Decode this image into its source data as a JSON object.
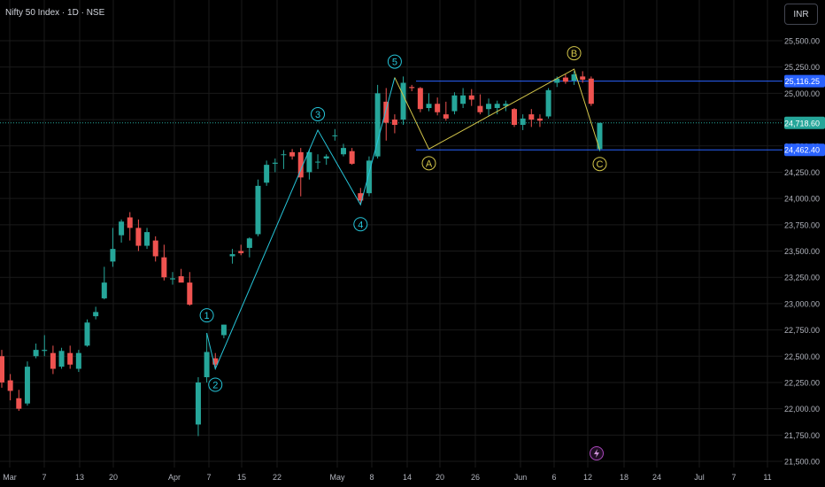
{
  "header": {
    "title": "Nifty 50 Index · 1D · NSE",
    "currency": "INR"
  },
  "colors": {
    "up": "#26a69a",
    "down": "#ef5350",
    "wave_line": "#26c6da",
    "abc_line": "#d4c64a",
    "level_line": "#2962ff",
    "current_line": "#26a69a",
    "grid": "#1a1a1a",
    "axis_text": "#b2b5be"
  },
  "chart_data": {
    "type": "candlestick",
    "title": "Nifty 50 Index · 1D · NSE",
    "y_ticks": [
      21500,
      21750,
      22000,
      22250,
      22500,
      22750,
      23000,
      23250,
      23500,
      23750,
      24000,
      24250,
      24500,
      24750,
      25000,
      25250,
      25500
    ],
    "y_tick_labels": [
      "21,500.00",
      "21,750.00",
      "22,000.00",
      "22,250.00",
      "22,500.00",
      "22,750.00",
      "23,000.00",
      "23,250.00",
      "23,500.00",
      "23,750.00",
      "24,000.00",
      "24,250.00",
      "24,500.00",
      "24,750.00",
      "25,000.00",
      "25,250.00",
      "25,500.00"
    ],
    "ylim": [
      21450,
      25650
    ],
    "x_labels": [
      "Mar",
      "7",
      "13",
      "20",
      "Apr",
      "7",
      "15",
      "22",
      "May",
      "8",
      "14",
      "20",
      "26",
      "Jun",
      "6",
      "12",
      "18",
      "24",
      "Jul",
      "7",
      "11"
    ],
    "candles": [
      {
        "o": 22500,
        "h": 22560,
        "l": 22200,
        "c": 22250
      },
      {
        "o": 22270,
        "h": 22330,
        "l": 22080,
        "c": 22170
      },
      {
        "o": 22100,
        "h": 22180,
        "l": 21980,
        "c": 22000
      },
      {
        "o": 22050,
        "h": 22450,
        "l": 22030,
        "c": 22400
      },
      {
        "o": 22500,
        "h": 22620,
        "l": 22480,
        "c": 22560
      },
      {
        "o": 22550,
        "h": 22700,
        "l": 22500,
        "c": 22560
      },
      {
        "o": 22530,
        "h": 22600,
        "l": 22330,
        "c": 22380
      },
      {
        "o": 22400,
        "h": 22580,
        "l": 22380,
        "c": 22550
      },
      {
        "o": 22530,
        "h": 22600,
        "l": 22380,
        "c": 22420
      },
      {
        "o": 22380,
        "h": 22560,
        "l": 22350,
        "c": 22530
      },
      {
        "o": 22600,
        "h": 22850,
        "l": 22590,
        "c": 22820
      },
      {
        "o": 22880,
        "h": 22970,
        "l": 22850,
        "c": 22920
      },
      {
        "o": 23050,
        "h": 23350,
        "l": 23040,
        "c": 23200
      },
      {
        "o": 23400,
        "h": 23720,
        "l": 23350,
        "c": 23520
      },
      {
        "o": 23650,
        "h": 23800,
        "l": 23580,
        "c": 23780
      },
      {
        "o": 23820,
        "h": 23870,
        "l": 23600,
        "c": 23720
      },
      {
        "o": 23720,
        "h": 23800,
        "l": 23500,
        "c": 23550
      },
      {
        "o": 23550,
        "h": 23720,
        "l": 23520,
        "c": 23680
      },
      {
        "o": 23600,
        "h": 23640,
        "l": 23400,
        "c": 23450
      },
      {
        "o": 23440,
        "h": 23560,
        "l": 23220,
        "c": 23250
      },
      {
        "o": 23230,
        "h": 23300,
        "l": 23180,
        "c": 23240
      },
      {
        "o": 23260,
        "h": 23330,
        "l": 23220,
        "c": 23200
      },
      {
        "o": 23200,
        "h": 23300,
        "l": 22980,
        "c": 22990
      },
      {
        "o": 21850,
        "h": 22300,
        "l": 21740,
        "c": 22250
      },
      {
        "o": 22300,
        "h": 22720,
        "l": 22250,
        "c": 22540
      },
      {
        "o": 22480,
        "h": 22530,
        "l": 22380,
        "c": 22420
      },
      {
        "o": 22700,
        "h": 22800,
        "l": 22670,
        "c": 22800
      },
      {
        "o": 23450,
        "h": 23520,
        "l": 23380,
        "c": 23470
      },
      {
        "o": 23500,
        "h": 23560,
        "l": 23460,
        "c": 23480
      },
      {
        "o": 23530,
        "h": 23630,
        "l": 23440,
        "c": 23620
      },
      {
        "o": 23660,
        "h": 24180,
        "l": 23640,
        "c": 24120
      },
      {
        "o": 24150,
        "h": 24360,
        "l": 24120,
        "c": 24320
      },
      {
        "o": 24330,
        "h": 24380,
        "l": 24250,
        "c": 24340
      },
      {
        "o": 24420,
        "h": 24460,
        "l": 24280,
        "c": 24420
      },
      {
        "o": 24440,
        "h": 24470,
        "l": 24370,
        "c": 24400
      },
      {
        "o": 24440,
        "h": 24480,
        "l": 24020,
        "c": 24200
      },
      {
        "o": 24250,
        "h": 24460,
        "l": 24180,
        "c": 24440
      },
      {
        "o": 24350,
        "h": 24420,
        "l": 24280,
        "c": 24350
      },
      {
        "o": 24380,
        "h": 24420,
        "l": 24320,
        "c": 24400
      },
      {
        "o": 24600,
        "h": 24660,
        "l": 24550,
        "c": 24600
      },
      {
        "o": 24420,
        "h": 24520,
        "l": 24400,
        "c": 24480
      },
      {
        "o": 24450,
        "h": 24480,
        "l": 24320,
        "c": 24330
      },
      {
        "o": 24050,
        "h": 24100,
        "l": 23940,
        "c": 23980
      },
      {
        "o": 24050,
        "h": 24400,
        "l": 24020,
        "c": 24360
      },
      {
        "o": 24400,
        "h": 25080,
        "l": 24380,
        "c": 25000
      },
      {
        "o": 24920,
        "h": 25050,
        "l": 24550,
        "c": 24720
      },
      {
        "o": 24750,
        "h": 24800,
        "l": 24620,
        "c": 24700
      },
      {
        "o": 24750,
        "h": 25160,
        "l": 24700,
        "c": 25100
      },
      {
        "o": 25060,
        "h": 25080,
        "l": 25020,
        "c": 25050
      },
      {
        "o": 25050,
        "h": 25060,
        "l": 24820,
        "c": 24850
      },
      {
        "o": 24860,
        "h": 25000,
        "l": 24830,
        "c": 24900
      },
      {
        "o": 24900,
        "h": 24960,
        "l": 24790,
        "c": 24820
      },
      {
        "o": 24800,
        "h": 24920,
        "l": 24740,
        "c": 24760
      },
      {
        "o": 24830,
        "h": 25010,
        "l": 24800,
        "c": 24980
      },
      {
        "o": 24900,
        "h": 25050,
        "l": 24860,
        "c": 24980
      },
      {
        "o": 24980,
        "h": 25040,
        "l": 24880,
        "c": 24940
      },
      {
        "o": 24880,
        "h": 24990,
        "l": 24800,
        "c": 24820
      },
      {
        "o": 24850,
        "h": 24950,
        "l": 24780,
        "c": 24900
      },
      {
        "o": 24860,
        "h": 24930,
        "l": 24800,
        "c": 24900
      },
      {
        "o": 24880,
        "h": 24930,
        "l": 24830,
        "c": 24900
      },
      {
        "o": 24850,
        "h": 24860,
        "l": 24680,
        "c": 24700
      },
      {
        "o": 24700,
        "h": 24800,
        "l": 24650,
        "c": 24760
      },
      {
        "o": 24800,
        "h": 24850,
        "l": 24680,
        "c": 24750
      },
      {
        "o": 24760,
        "h": 24800,
        "l": 24680,
        "c": 24740
      },
      {
        "o": 24780,
        "h": 25050,
        "l": 24760,
        "c": 25030
      },
      {
        "o": 25100,
        "h": 25160,
        "l": 25060,
        "c": 25140
      },
      {
        "o": 25150,
        "h": 25180,
        "l": 25090,
        "c": 25110
      },
      {
        "o": 25120,
        "h": 25210,
        "l": 25080,
        "c": 25180
      },
      {
        "o": 25160,
        "h": 25210,
        "l": 25100,
        "c": 25130
      },
      {
        "o": 25140,
        "h": 25160,
        "l": 24880,
        "c": 24900
      },
      {
        "o": 24470,
        "h": 24720,
        "l": 24450,
        "c": 24718.6
      }
    ],
    "levels": [
      {
        "value": 25116.25,
        "label": "25,116.25",
        "color": "#2962ff"
      },
      {
        "value": 24462.4,
        "label": "24,462.40",
        "color": "#2962ff"
      },
      {
        "value": 24718.6,
        "label": "24,718.60",
        "color": "#26a69a"
      }
    ],
    "wave_points": [
      {
        "label": "1",
        "date_index": 24,
        "price": 22720
      },
      {
        "label": "2",
        "date_index": 25,
        "price": 22380
      },
      {
        "label": "3",
        "date_index": 37,
        "price": 24650
      },
      {
        "label": "4",
        "date_index": 42,
        "price": 23940
      },
      {
        "label": "5",
        "date_index": 46,
        "price": 25150
      }
    ],
    "abc_points": [
      {
        "label": "A",
        "date_index": 50,
        "price": 24470
      },
      {
        "label": "B",
        "date_index": 67,
        "price": 25230
      },
      {
        "label": "C",
        "date_index": 70,
        "price": 24462.4
      }
    ],
    "abc_start": {
      "date_index": 46,
      "price": 25150
    }
  }
}
